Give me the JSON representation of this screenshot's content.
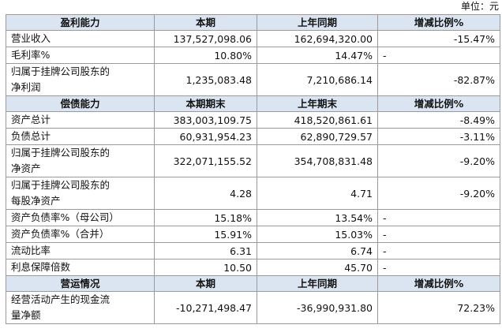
{
  "unit": "单位：元",
  "sections": [
    {
      "header": [
        "盈利能力",
        "本期",
        "上年同期",
        "增减比例%"
      ],
      "rows": [
        {
          "label": [
            "营业收入"
          ],
          "cells": [
            "137,527,098.06",
            "162,694,320.00",
            "-15.47%"
          ]
        },
        {
          "label": [
            "毛利率%"
          ],
          "cells": [
            "10.80%",
            "14.47%",
            "-"
          ]
        },
        {
          "label": [
            "归属于挂牌公司股东的",
            "净利润"
          ],
          "cells": [
            "1,235,083.48",
            "7,210,686.14",
            "-82.87%"
          ]
        }
      ]
    },
    {
      "header": [
        "偿债能力",
        "本期期末",
        "上年期末",
        "增减比例%"
      ],
      "rows": [
        {
          "label": [
            "资产总计"
          ],
          "cells": [
            "383,003,109.75",
            "418,520,861.61",
            "-8.49%"
          ]
        },
        {
          "label": [
            "负债总计"
          ],
          "cells": [
            "60,931,954.23",
            "62,890,729.57",
            "-3.11%"
          ]
        },
        {
          "label": [
            "归属于挂牌公司股东的",
            "净资产"
          ],
          "cells": [
            "322,071,155.52",
            "354,708,831.48",
            "-9.20%"
          ]
        },
        {
          "label": [
            "归属于挂牌公司股东的",
            "每股净资产"
          ],
          "cells": [
            "4.28",
            "4.71",
            "-9.20%"
          ]
        },
        {
          "label": [
            "资产负债率%（母公司）"
          ],
          "cells": [
            "15.18%",
            "13.54%",
            "-"
          ]
        },
        {
          "label": [
            "资产负债率%（合并）"
          ],
          "cells": [
            "15.91%",
            "15.03%",
            "-"
          ]
        },
        {
          "label": [
            "流动比率"
          ],
          "cells": [
            "6.31",
            "6.74",
            "-"
          ]
        },
        {
          "label": [
            "利息保障倍数"
          ],
          "cells": [
            "10.50",
            "45.70",
            "-"
          ]
        }
      ]
    },
    {
      "header": [
        "营运情况",
        "本期",
        "上年同期",
        "增减比例%"
      ],
      "rows": [
        {
          "label": [
            "经营活动产生的现金流",
            "量净额"
          ],
          "cells": [
            "-10,271,498.47",
            "-36,990,931.80",
            "72.23%"
          ]
        }
      ]
    }
  ]
}
